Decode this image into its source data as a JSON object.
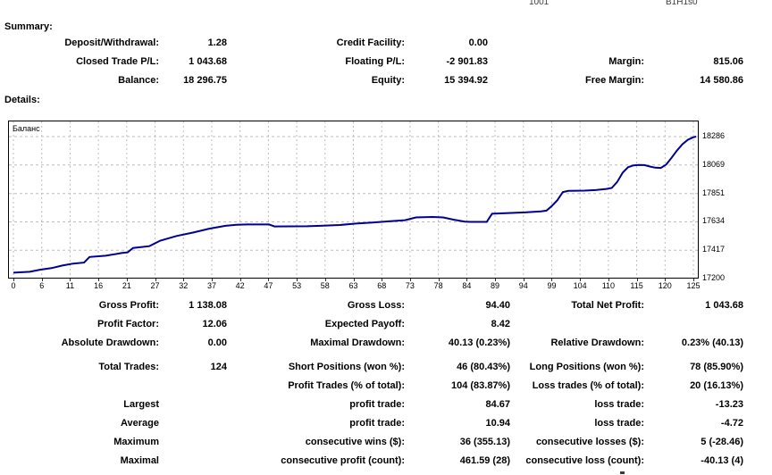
{
  "header": {
    "partial_left": "1001",
    "partial_right": "B1H1s0"
  },
  "summary": {
    "title": "Summary:",
    "rows": [
      {
        "c1l": "Deposit/Withdrawal:",
        "c1v": "1.28",
        "c2l": "Credit Facility:",
        "c2v": "0.00",
        "c3l": "",
        "c3v": ""
      },
      {
        "c1l": "Closed Trade P/L:",
        "c1v": "1 043.68",
        "c2l": "Floating P/L:",
        "c2v": "-2 901.83",
        "c3l": "Margin:",
        "c3v": "815.06"
      },
      {
        "c1l": "Balance:",
        "c1v": "18 296.75",
        "c2l": "Equity:",
        "c2v": "15 394.92",
        "c3l": "Free Margin:",
        "c3v": "14 580.86"
      }
    ]
  },
  "details": {
    "title": "Details:",
    "rows": [
      {
        "c1l": "Gross Profit:",
        "c1v": "1 138.08",
        "c2l": "Gross Loss:",
        "c2v": "94.40",
        "c3l": "Total Net Profit:",
        "c3v": "1 043.68",
        "gap": false
      },
      {
        "c1l": "Profit Factor:",
        "c1v": "12.06",
        "c2l": "Expected Payoff:",
        "c2v": "8.42",
        "c3l": "",
        "c3v": "",
        "gap": false
      },
      {
        "c1l": "Absolute Drawdown:",
        "c1v": "0.00",
        "c2l": "Maximal Drawdown:",
        "c2v": "40.13 (0.23%)",
        "c3l": "Relative Drawdown:",
        "c3v": "0.23% (40.13)",
        "gap": false
      },
      {
        "c1l": "Total Trades:",
        "c1v": "124",
        "c2l": "Short Positions (won %):",
        "c2v": "46 (80.43%)",
        "c3l": "Long Positions (won %):",
        "c3v": "78 (85.90%)",
        "gap": true
      },
      {
        "c1l": "",
        "c1v": "",
        "c2l": "Profit Trades (% of total):",
        "c2v": "104 (83.87%)",
        "c3l": "Loss trades (% of total):",
        "c3v": "20 (16.13%)",
        "gap": false
      },
      {
        "c1l": "Largest",
        "c1v": "",
        "c2l": "profit trade:",
        "c2v": "84.67",
        "c3l": "loss trade:",
        "c3v": "-13.23",
        "gap": false
      },
      {
        "c1l": "Average",
        "c1v": "",
        "c2l": "profit trade:",
        "c2v": "10.94",
        "c3l": "loss trade:",
        "c3v": "-4.72",
        "gap": false
      },
      {
        "c1l": "Maximum",
        "c1v": "",
        "c2l": "consecutive wins ($):",
        "c2v": "36 (355.13)",
        "c3l": "consecutive losses ($):",
        "c3v": "5 (-28.46)",
        "gap": false
      },
      {
        "c1l": "Maximal",
        "c1v": "",
        "c2l": "consecutive profit (count):",
        "c2v": "461.59 (28)",
        "c3l": "consecutive loss (count):",
        "c3v": "-40.13 (4)",
        "gap": false
      }
    ]
  },
  "chart_data": {
    "type": "line",
    "title": "Баланс",
    "xlabel": "",
    "ylabel": "",
    "x_tick_labels": [
      0,
      6,
      11,
      16,
      21,
      27,
      32,
      37,
      42,
      47,
      53,
      58,
      63,
      68,
      73,
      78,
      84,
      89,
      94,
      99,
      104,
      110,
      115,
      120,
      125
    ],
    "y_tick_labels": [
      17200,
      17417,
      17634,
      17851,
      18069,
      18286
    ],
    "xlim": [
      0,
      126
    ],
    "ylim": [
      17200,
      18400
    ],
    "grid": true,
    "legend_position": "none",
    "line_color": "#000090",
    "grid_color": "#bdbdbd",
    "series": [
      {
        "name": "Баланс",
        "points": [
          [
            0,
            17245
          ],
          [
            3,
            17252
          ],
          [
            5,
            17268
          ],
          [
            7,
            17280
          ],
          [
            9,
            17300
          ],
          [
            11,
            17315
          ],
          [
            13,
            17322
          ],
          [
            14,
            17365
          ],
          [
            17,
            17375
          ],
          [
            20,
            17396
          ],
          [
            21,
            17400
          ],
          [
            22,
            17434
          ],
          [
            25,
            17448
          ],
          [
            27,
            17490
          ],
          [
            30,
            17526
          ],
          [
            33,
            17552
          ],
          [
            36,
            17582
          ],
          [
            39,
            17604
          ],
          [
            41,
            17612
          ],
          [
            43,
            17614
          ],
          [
            47,
            17614
          ],
          [
            48,
            17599
          ],
          [
            54,
            17600
          ],
          [
            57,
            17605
          ],
          [
            60,
            17610
          ],
          [
            63,
            17621
          ],
          [
            66,
            17628
          ],
          [
            69,
            17638
          ],
          [
            72,
            17647
          ],
          [
            74,
            17668
          ],
          [
            77,
            17671
          ],
          [
            79,
            17668
          ],
          [
            81,
            17650
          ],
          [
            83,
            17636
          ],
          [
            84,
            17634
          ],
          [
            87,
            17634
          ],
          [
            88,
            17696
          ],
          [
            91,
            17701
          ],
          [
            94,
            17706
          ],
          [
            97,
            17714
          ],
          [
            98,
            17720
          ],
          [
            99,
            17756
          ],
          [
            100,
            17800
          ],
          [
            101,
            17862
          ],
          [
            102,
            17871
          ],
          [
            105,
            17873
          ],
          [
            107,
            17877
          ],
          [
            109,
            17886
          ],
          [
            110,
            17893
          ],
          [
            111,
            17940
          ],
          [
            112,
            18010
          ],
          [
            113,
            18052
          ],
          [
            114,
            18066
          ],
          [
            115,
            18069
          ],
          [
            116,
            18068
          ],
          [
            117,
            18057
          ],
          [
            118,
            18048
          ],
          [
            119,
            18046
          ],
          [
            120,
            18072
          ],
          [
            121,
            18124
          ],
          [
            122,
            18180
          ],
          [
            123,
            18228
          ],
          [
            124,
            18262
          ],
          [
            125,
            18281
          ],
          [
            126,
            18286
          ]
        ]
      }
    ]
  }
}
